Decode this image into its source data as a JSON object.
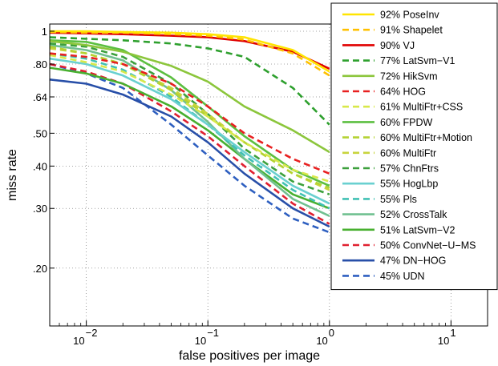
{
  "chart_data": {
    "type": "line",
    "xlabel": "false positives per image",
    "ylabel": "miss rate",
    "x_scale": "log",
    "y_scale": "log",
    "xlim": [
      0.005,
      20
    ],
    "ylim": [
      0.135,
      1.05
    ],
    "x_ticks": [
      {
        "value": 0.01,
        "label": "10",
        "exp": "−2"
      },
      {
        "value": 0.1,
        "label": "10",
        "exp": "−1"
      },
      {
        "value": 1,
        "label": "10",
        "exp": "0"
      },
      {
        "value": 10,
        "label": "10",
        "exp": "1"
      }
    ],
    "y_ticks": [
      {
        "value": 1,
        "label": "1"
      },
      {
        "value": 0.8,
        "label": ".80"
      },
      {
        "value": 0.64,
        "label": ".64"
      },
      {
        "value": 0.5,
        "label": ".50"
      },
      {
        "value": 0.4,
        "label": ".40"
      },
      {
        "value": 0.3,
        "label": ".30"
      },
      {
        "value": 0.2,
        "label": ".20"
      }
    ],
    "grid": true,
    "legend_position": "right-inside",
    "x": [
      0.005,
      0.01,
      0.02,
      0.05,
      0.1,
      0.2,
      0.5,
      1.0
    ],
    "series": [
      {
        "name": "92% PoseInv",
        "color": "#ffe500",
        "dash": false,
        "values": [
          1.0,
          1.0,
          0.995,
          0.99,
          0.98,
          0.96,
          0.88,
          0.76
        ]
      },
      {
        "name": "91% Shapelet",
        "color": "#ffc000",
        "dash": true,
        "values": [
          0.995,
          0.99,
          0.99,
          0.98,
          0.97,
          0.945,
          0.86,
          0.74
        ]
      },
      {
        "name": "90% VJ",
        "color": "#e00000",
        "dash": false,
        "values": [
          0.99,
          0.985,
          0.98,
          0.97,
          0.96,
          0.935,
          0.87,
          0.775
        ]
      },
      {
        "name": "77% LatSvm−V1",
        "color": "#2ea02e",
        "dash": true,
        "values": [
          0.96,
          0.95,
          0.94,
          0.92,
          0.89,
          0.84,
          0.68,
          0.53
        ]
      },
      {
        "name": "72% HikSvm",
        "color": "#8cc63c",
        "dash": false,
        "values": [
          0.935,
          0.91,
          0.87,
          0.79,
          0.71,
          0.6,
          0.51,
          0.44
        ]
      },
      {
        "name": "64% HOG",
        "color": "#e82020",
        "dash": true,
        "values": [
          0.86,
          0.84,
          0.8,
          0.7,
          0.6,
          0.5,
          0.42,
          0.38
        ]
      },
      {
        "name": "61% MultiFtr+CSS",
        "color": "#d8e84a",
        "dash": true,
        "values": [
          0.85,
          0.81,
          0.76,
          0.65,
          0.56,
          0.47,
          0.39,
          0.36
        ]
      },
      {
        "name": "60% FPDW",
        "color": "#5cbf40",
        "dash": false,
        "values": [
          0.94,
          0.93,
          0.88,
          0.73,
          0.6,
          0.49,
          0.39,
          0.35
        ]
      },
      {
        "name": "60% MultiFtr+Motion",
        "color": "#b4d232",
        "dash": true,
        "values": [
          0.9,
          0.86,
          0.8,
          0.67,
          0.56,
          0.47,
          0.38,
          0.345
        ]
      },
      {
        "name": "60% MultiFtr",
        "color": "#c8d43c",
        "dash": true,
        "values": [
          0.89,
          0.86,
          0.8,
          0.68,
          0.57,
          0.47,
          0.38,
          0.34
        ]
      },
      {
        "name": "57% ChnFtrs",
        "color": "#3ca03c",
        "dash": true,
        "values": [
          0.92,
          0.9,
          0.84,
          0.7,
          0.57,
          0.45,
          0.36,
          0.33
        ]
      },
      {
        "name": "55% HogLbp",
        "color": "#6ad0d0",
        "dash": false,
        "values": [
          0.83,
          0.8,
          0.74,
          0.63,
          0.53,
          0.44,
          0.35,
          0.31
        ]
      },
      {
        "name": "55% Pls",
        "color": "#40c0b4",
        "dash": true,
        "values": [
          0.86,
          0.83,
          0.77,
          0.64,
          0.53,
          0.43,
          0.34,
          0.3
        ]
      },
      {
        "name": "52% CrossTalk",
        "color": "#70c090",
        "dash": false,
        "values": [
          0.91,
          0.88,
          0.82,
          0.67,
          0.54,
          0.42,
          0.32,
          0.285
        ]
      },
      {
        "name": "51% LatSvm−V2",
        "color": "#48b030",
        "dash": false,
        "values": [
          0.78,
          0.75,
          0.7,
          0.6,
          0.51,
          0.42,
          0.33,
          0.3
        ]
      },
      {
        "name": "50% ConvNet−U−MS",
        "color": "#e02030",
        "dash": true,
        "values": [
          0.8,
          0.76,
          0.7,
          0.58,
          0.49,
          0.4,
          0.31,
          0.27
        ]
      },
      {
        "name": "47% DN−HOG",
        "color": "#284fa8",
        "dash": false,
        "values": [
          0.72,
          0.7,
          0.65,
          0.56,
          0.47,
          0.38,
          0.3,
          0.265
        ]
      },
      {
        "name": "45% UDN",
        "color": "#2e5fc0",
        "dash": true,
        "values": [
          0.8,
          0.75,
          0.68,
          0.53,
          0.43,
          0.35,
          0.28,
          0.255
        ]
      }
    ]
  }
}
